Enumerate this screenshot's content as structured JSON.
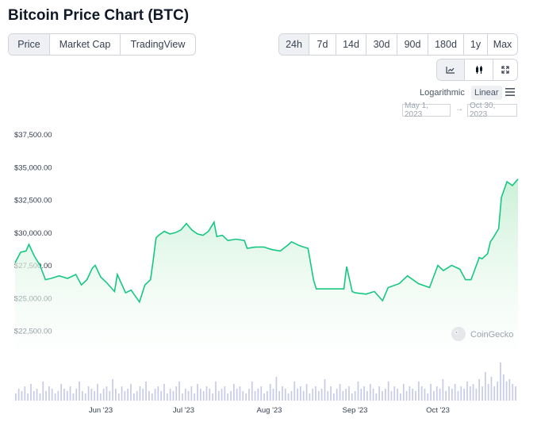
{
  "page": {
    "title": "Bitcoin Price Chart (BTC)"
  },
  "view_tabs": [
    {
      "label": "Price",
      "active": true
    },
    {
      "label": "Market Cap",
      "active": false
    },
    {
      "label": "TradingView",
      "active": false
    }
  ],
  "range_tabs": [
    {
      "label": "24h",
      "active": true
    },
    {
      "label": "7d",
      "active": false
    },
    {
      "label": "14d",
      "active": false
    },
    {
      "label": "30d",
      "active": false
    },
    {
      "label": "90d",
      "active": false
    },
    {
      "label": "180d",
      "active": false
    },
    {
      "label": "1y",
      "active": false
    },
    {
      "label": "Max",
      "active": false
    }
  ],
  "chart_type_buttons": [
    {
      "icon": "line-chart-icon",
      "active": true
    },
    {
      "icon": "candlestick-icon",
      "active": false
    },
    {
      "icon": "fullscreen-icon",
      "active": false
    }
  ],
  "scale": {
    "log_label": "Logarithmic",
    "linear_label": "Linear",
    "selected": "linear"
  },
  "date_range": {
    "from": "May 1, 2023",
    "arrow": "→",
    "to": "Oct 30, 2023"
  },
  "watermark": "CoinGecko",
  "colors": {
    "line": "#16c784",
    "fill_top": "#c8f0d5",
    "fill_bottom": "#ffffff",
    "volume": "#c7cbe6",
    "active_bg": "#eef0f3"
  },
  "chart_data": {
    "type": "line",
    "title": "",
    "xlabel": "",
    "ylabel": "",
    "ylim": [
      21500,
      38000
    ],
    "yticks": [
      22500,
      25000,
      27500,
      30000,
      32500,
      35000,
      37500
    ],
    "ytick_labels": [
      "$22,500.00",
      "$25,000.00",
      "$27,500.00",
      "$30,000.00",
      "$32,500.00",
      "$35,000.00",
      "$37,500.00"
    ],
    "xlim": [
      "2023-05-01",
      "2023-10-30"
    ],
    "xticks": [
      "2023-06-01",
      "2023-07-01",
      "2023-08-01",
      "2023-09-01",
      "2023-10-01"
    ],
    "xtick_labels": [
      "Jun '23",
      "Jul '23",
      "Aug '23",
      "Sep '23",
      "Oct '23"
    ],
    "grid": false,
    "legend": "none",
    "series": [
      {
        "x": [
          "2023-05-01",
          "2023-05-03",
          "2023-05-05",
          "2023-05-06",
          "2023-05-08",
          "2023-05-10",
          "2023-05-12",
          "2023-05-14",
          "2023-05-17",
          "2023-05-20",
          "2023-05-23",
          "2023-05-25",
          "2023-05-27",
          "2023-05-29",
          "2023-05-30",
          "2023-06-01",
          "2023-06-03",
          "2023-06-06",
          "2023-06-07",
          "2023-06-10",
          "2023-06-12",
          "2023-06-14",
          "2023-06-15",
          "2023-06-17",
          "2023-06-19",
          "2023-06-20",
          "2023-06-21",
          "2023-06-22",
          "2023-06-24",
          "2023-06-26",
          "2023-06-28",
          "2023-06-30",
          "2023-07-02",
          "2023-07-04",
          "2023-07-06",
          "2023-07-08",
          "2023-07-10",
          "2023-07-12",
          "2023-07-13",
          "2023-07-15",
          "2023-07-17",
          "2023-07-20",
          "2023-07-23",
          "2023-07-24",
          "2023-07-27",
          "2023-07-30",
          "2023-08-02",
          "2023-08-05",
          "2023-08-08",
          "2023-08-09",
          "2023-08-12",
          "2023-08-15",
          "2023-08-17",
          "2023-08-18",
          "2023-08-21",
          "2023-08-24",
          "2023-08-28",
          "2023-08-29",
          "2023-08-31",
          "2023-09-01",
          "2023-09-05",
          "2023-09-08",
          "2023-09-11",
          "2023-09-13",
          "2023-09-17",
          "2023-09-20",
          "2023-09-24",
          "2023-09-28",
          "2023-10-01",
          "2023-10-03",
          "2023-10-06",
          "2023-10-09",
          "2023-10-11",
          "2023-10-13",
          "2023-10-16",
          "2023-10-17",
          "2023-10-19",
          "2023-10-20",
          "2023-10-21",
          "2023-10-23",
          "2023-10-24",
          "2023-10-26",
          "2023-10-28",
          "2023-10-30"
        ],
        "y": [
          28100,
          28900,
          29000,
          29500,
          28600,
          27900,
          26800,
          26900,
          27100,
          26900,
          27200,
          26400,
          26800,
          27700,
          27900,
          27000,
          26600,
          25900,
          27200,
          25800,
          26000,
          25400,
          25100,
          26400,
          26800,
          28300,
          30000,
          30200,
          30500,
          30300,
          30400,
          30600,
          31100,
          30600,
          30300,
          30200,
          30500,
          31200,
          30100,
          30200,
          29800,
          29900,
          29800,
          29200,
          29300,
          29300,
          29100,
          29000,
          29500,
          29700,
          29400,
          29200,
          26800,
          26100,
          26100,
          26100,
          26100,
          27800,
          25900,
          25800,
          25700,
          25900,
          25200,
          26200,
          26500,
          27100,
          26500,
          26200,
          27900,
          27500,
          27900,
          27600,
          26800,
          26800,
          28500,
          28400,
          28800,
          29700,
          30000,
          30700,
          33100,
          34300,
          34000,
          34500
        ]
      }
    ],
    "volume_series": {
      "type": "bar",
      "values": [
        3,
        5,
        4,
        6,
        3,
        7,
        4,
        5,
        3,
        8,
        4,
        6,
        5,
        3,
        4,
        7,
        5,
        4,
        6,
        3,
        5,
        8,
        4,
        3,
        6,
        5,
        4,
        7,
        3,
        5,
        6,
        4,
        9,
        5,
        3,
        6,
        4,
        5,
        7,
        3,
        4,
        6,
        5,
        8,
        4,
        3,
        5,
        6,
        4,
        7,
        3,
        5,
        4,
        6,
        8,
        3,
        5,
        4,
        6,
        3,
        7,
        5,
        4,
        6,
        5,
        3,
        8,
        4,
        5,
        6,
        3,
        4,
        7,
        5,
        6,
        4,
        3,
        5,
        8,
        4,
        5,
        6,
        3,
        4,
        7,
        5,
        10,
        4,
        6,
        5,
        3,
        4,
        8,
        5,
        6,
        4,
        7,
        3,
        5,
        6,
        4,
        5,
        9,
        4,
        6,
        3,
        5,
        7,
        4,
        5,
        6,
        3,
        4,
        8,
        5,
        6,
        4,
        7,
        5,
        3,
        6,
        4,
        5,
        8,
        4,
        6,
        5,
        3,
        7,
        4,
        6,
        5,
        4,
        8,
        6,
        5,
        3,
        7,
        4,
        6,
        5,
        9,
        4,
        6,
        5,
        7,
        4,
        6,
        5,
        8,
        6,
        7,
        5,
        9,
        6,
        12,
        7,
        10,
        6,
        8,
        16,
        11,
        8,
        9,
        7,
        6
      ]
    }
  }
}
